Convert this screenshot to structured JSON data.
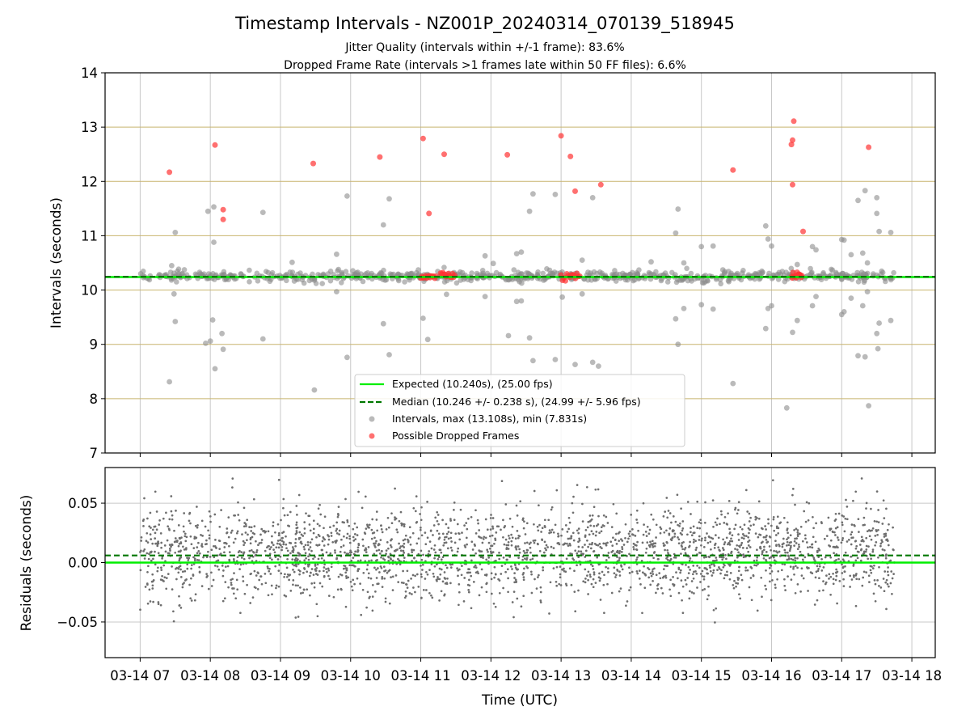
{
  "title": "Timestamp Intervals - NZ001P_20240314_070139_518945",
  "subtitle_lines": [
    "Jitter Quality (intervals within +/-1 frame): 83.6%",
    "Dropped Frame Rate (intervals >1 frames late within 50 FF files): 6.6%"
  ],
  "colors": {
    "expected": "#00ee00",
    "median": "#007700",
    "intervals": "#8c8c8c",
    "dropped": "#ff3333",
    "bandline": "#c8b46e",
    "grid": "#c8c8c8"
  },
  "chart_data": [
    {
      "type": "scatter",
      "ylabel": "Intervals (seconds)",
      "ylim": [
        7,
        14
      ],
      "yticks": [
        "7",
        "8",
        "9",
        "10",
        "11",
        "12",
        "13",
        "14"
      ],
      "xlim": [
        "2024-03-14 06:30",
        "2024-03-14 18:20"
      ],
      "horizontal_reference_lines": [
        8,
        9,
        10,
        11,
        12,
        13
      ],
      "grid": true,
      "legend_placement": "lower center",
      "legend": {
        "expected": "Expected (10.240s), (25.00 fps)",
        "median": "Median (10.246 +/- 0.238 s), (24.99 +/- 5.96 fps)",
        "intervals": "Intervals, max (13.108s), min (7.831s)",
        "dropped": "Possible Dropped Frames"
      },
      "expected_interval": 10.24,
      "median_interval": 10.246,
      "band_clusters": [
        {
          "x_start": "2024-03-14 07:00",
          "x_end": "2024-03-14 17:45",
          "y_center": 10.25,
          "y_spread": 0.1
        }
      ],
      "outliers": [
        {
          "x": "2024-03-14 07:25",
          "y": 8.31
        },
        {
          "x": "2024-03-14 07:27",
          "y": 10.45
        },
        {
          "x": "2024-03-14 07:29",
          "y": 9.93
        },
        {
          "x": "2024-03-14 07:30",
          "y": 9.42
        },
        {
          "x": "2024-03-14 07:30",
          "y": 11.06
        },
        {
          "x": "2024-03-14 07:58",
          "y": 11.45
        },
        {
          "x": "2024-03-14 07:56",
          "y": 9.02
        },
        {
          "x": "2024-03-14 08:00",
          "y": 9.06
        },
        {
          "x": "2024-03-14 08:02",
          "y": 9.45
        },
        {
          "x": "2024-03-14 08:03",
          "y": 11.53
        },
        {
          "x": "2024-03-14 08:03",
          "y": 10.88
        },
        {
          "x": "2024-03-14 08:04",
          "y": 8.55
        },
        {
          "x": "2024-03-14 08:10",
          "y": 9.2
        },
        {
          "x": "2024-03-14 08:11",
          "y": 8.91
        },
        {
          "x": "2024-03-14 08:45",
          "y": 11.43
        },
        {
          "x": "2024-03-14 08:45",
          "y": 9.1
        },
        {
          "x": "2024-03-14 09:10",
          "y": 10.51
        },
        {
          "x": "2024-03-14 09:29",
          "y": 8.16
        },
        {
          "x": "2024-03-14 09:48",
          "y": 10.66
        },
        {
          "x": "2024-03-14 09:48",
          "y": 9.97
        },
        {
          "x": "2024-03-14 09:57",
          "y": 11.73
        },
        {
          "x": "2024-03-14 09:57",
          "y": 8.76
        },
        {
          "x": "2024-03-14 10:28",
          "y": 11.2
        },
        {
          "x": "2024-03-14 10:28",
          "y": 9.38
        },
        {
          "x": "2024-03-14 10:33",
          "y": 11.68
        },
        {
          "x": "2024-03-14 10:33",
          "y": 8.81
        },
        {
          "x": "2024-03-14 11:02",
          "y": 9.48
        },
        {
          "x": "2024-03-14 11:06",
          "y": 9.09
        },
        {
          "x": "2024-03-14 11:22",
          "y": 9.92
        },
        {
          "x": "2024-03-14 11:55",
          "y": 10.63
        },
        {
          "x": "2024-03-14 11:55",
          "y": 9.88
        },
        {
          "x": "2024-03-14 12:02",
          "y": 10.49
        },
        {
          "x": "2024-03-14 12:15",
          "y": 9.16
        },
        {
          "x": "2024-03-14 12:22",
          "y": 10.67
        },
        {
          "x": "2024-03-14 12:22",
          "y": 9.79
        },
        {
          "x": "2024-03-14 12:26",
          "y": 10.7
        },
        {
          "x": "2024-03-14 12:26",
          "y": 9.8
        },
        {
          "x": "2024-03-14 12:33",
          "y": 11.45
        },
        {
          "x": "2024-03-14 12:33",
          "y": 9.12
        },
        {
          "x": "2024-03-14 12:36",
          "y": 11.77
        },
        {
          "x": "2024-03-14 12:36",
          "y": 8.7
        },
        {
          "x": "2024-03-14 12:55",
          "y": 11.76
        },
        {
          "x": "2024-03-14 12:55",
          "y": 8.72
        },
        {
          "x": "2024-03-14 13:01",
          "y": 9.87
        },
        {
          "x": "2024-03-14 13:12",
          "y": 8.63
        },
        {
          "x": "2024-03-14 13:18",
          "y": 10.55
        },
        {
          "x": "2024-03-14 13:18",
          "y": 9.93
        },
        {
          "x": "2024-03-14 13:27",
          "y": 11.7
        },
        {
          "x": "2024-03-14 13:27",
          "y": 8.67
        },
        {
          "x": "2024-03-14 13:32",
          "y": 8.6
        },
        {
          "x": "2024-03-14 14:17",
          "y": 10.52
        },
        {
          "x": "2024-03-14 14:38",
          "y": 11.05
        },
        {
          "x": "2024-03-14 14:38",
          "y": 9.47
        },
        {
          "x": "2024-03-14 14:40",
          "y": 11.49
        },
        {
          "x": "2024-03-14 14:40",
          "y": 9.0
        },
        {
          "x": "2024-03-14 14:45",
          "y": 10.5
        },
        {
          "x": "2024-03-14 14:45",
          "y": 9.66
        },
        {
          "x": "2024-03-14 15:00",
          "y": 10.8
        },
        {
          "x": "2024-03-14 15:00",
          "y": 9.73
        },
        {
          "x": "2024-03-14 15:10",
          "y": 10.81
        },
        {
          "x": "2024-03-14 15:10",
          "y": 9.65
        },
        {
          "x": "2024-03-14 15:27",
          "y": 8.28
        },
        {
          "x": "2024-03-14 15:55",
          "y": 11.18
        },
        {
          "x": "2024-03-14 15:55",
          "y": 9.29
        },
        {
          "x": "2024-03-14 15:57",
          "y": 10.94
        },
        {
          "x": "2024-03-14 15:57",
          "y": 9.66
        },
        {
          "x": "2024-03-14 16:00",
          "y": 10.81
        },
        {
          "x": "2024-03-14 16:00",
          "y": 9.71
        },
        {
          "x": "2024-03-14 16:13",
          "y": 7.83
        },
        {
          "x": "2024-03-14 16:18",
          "y": 9.22
        },
        {
          "x": "2024-03-14 16:22",
          "y": 10.47
        },
        {
          "x": "2024-03-14 16:22",
          "y": 9.44
        },
        {
          "x": "2024-03-14 16:35",
          "y": 10.8
        },
        {
          "x": "2024-03-14 16:35",
          "y": 9.71
        },
        {
          "x": "2024-03-14 16:38",
          "y": 10.74
        },
        {
          "x": "2024-03-14 16:38",
          "y": 9.88
        },
        {
          "x": "2024-03-14 17:00",
          "y": 10.93
        },
        {
          "x": "2024-03-14 17:00",
          "y": 9.55
        },
        {
          "x": "2024-03-14 17:02",
          "y": 10.92
        },
        {
          "x": "2024-03-14 17:02",
          "y": 9.6
        },
        {
          "x": "2024-03-14 17:08",
          "y": 10.65
        },
        {
          "x": "2024-03-14 17:08",
          "y": 9.85
        },
        {
          "x": "2024-03-14 17:14",
          "y": 11.65
        },
        {
          "x": "2024-03-14 17:14",
          "y": 8.79
        },
        {
          "x": "2024-03-14 17:18",
          "y": 10.68
        },
        {
          "x": "2024-03-14 17:18",
          "y": 9.71
        },
        {
          "x": "2024-03-14 17:20",
          "y": 11.83
        },
        {
          "x": "2024-03-14 17:20",
          "y": 8.77
        },
        {
          "x": "2024-03-14 17:22",
          "y": 10.5
        },
        {
          "x": "2024-03-14 17:22",
          "y": 9.97
        },
        {
          "x": "2024-03-14 17:23",
          "y": 7.87
        },
        {
          "x": "2024-03-14 17:30",
          "y": 11.7
        },
        {
          "x": "2024-03-14 17:30",
          "y": 11.41
        },
        {
          "x": "2024-03-14 17:30",
          "y": 9.2
        },
        {
          "x": "2024-03-14 17:31",
          "y": 8.92
        },
        {
          "x": "2024-03-14 17:32",
          "y": 11.08
        },
        {
          "x": "2024-03-14 17:32",
          "y": 9.39
        },
        {
          "x": "2024-03-14 17:42",
          "y": 11.06
        },
        {
          "x": "2024-03-14 17:42",
          "y": 9.44
        }
      ],
      "dropped_frames": [
        {
          "x": "2024-03-14 07:25",
          "y": 12.17
        },
        {
          "x": "2024-03-14 08:04",
          "y": 12.67
        },
        {
          "x": "2024-03-14 08:11",
          "y": 11.48
        },
        {
          "x": "2024-03-14 08:11",
          "y": 11.3
        },
        {
          "x": "2024-03-14 09:28",
          "y": 12.33
        },
        {
          "x": "2024-03-14 10:25",
          "y": 12.45
        },
        {
          "x": "2024-03-14 11:02",
          "y": 12.79
        },
        {
          "x": "2024-03-14 11:07",
          "y": 11.41
        },
        {
          "x": "2024-03-14 11:20",
          "y": 12.5
        },
        {
          "x": "2024-03-14 12:14",
          "y": 12.49
        },
        {
          "x": "2024-03-14 13:00",
          "y": 12.84
        },
        {
          "x": "2024-03-14 13:08",
          "y": 12.46
        },
        {
          "x": "2024-03-14 13:12",
          "y": 11.82
        },
        {
          "x": "2024-03-14 13:34",
          "y": 11.94
        },
        {
          "x": "2024-03-14 15:27",
          "y": 12.21
        },
        {
          "x": "2024-03-14 16:17",
          "y": 12.68
        },
        {
          "x": "2024-03-14 16:18",
          "y": 12.76
        },
        {
          "x": "2024-03-14 16:19",
          "y": 13.11
        },
        {
          "x": "2024-03-14 16:18",
          "y": 11.94
        },
        {
          "x": "2024-03-14 16:27",
          "y": 11.08
        },
        {
          "x": "2024-03-14 17:23",
          "y": 12.63
        }
      ],
      "dropped_clusters": [
        {
          "x_start": "2024-03-14 11:00",
          "x_end": "2024-03-14 11:13",
          "y": 10.26
        },
        {
          "x_start": "2024-03-14 11:17",
          "x_end": "2024-03-14 11:29",
          "y": 10.28
        },
        {
          "x_start": "2024-03-14 13:00",
          "x_end": "2024-03-14 13:16",
          "y": 10.26
        },
        {
          "x_start": "2024-03-14 16:17",
          "x_end": "2024-03-14 16:26",
          "y": 10.27
        }
      ]
    },
    {
      "type": "scatter",
      "xlabel": "Time (UTC)",
      "ylabel": "Residuals (seconds)",
      "ylim": [
        -0.08,
        0.08
      ],
      "yticks": [
        {
          "value": 0.05,
          "label": "0.05"
        },
        {
          "value": 0.0,
          "label": "0.00"
        },
        {
          "value": -0.05,
          "label": "−0.05"
        }
      ],
      "xlim": [
        "2024-03-14 06:30",
        "2024-03-14 18:20"
      ],
      "xticks": [
        "03-14 07",
        "03-14 08",
        "03-14 09",
        "03-14 10",
        "03-14 11",
        "03-14 12",
        "03-14 13",
        "03-14 14",
        "03-14 15",
        "03-14 16",
        "03-14 17",
        "03-14 18"
      ],
      "grid": true,
      "expected_residual": 0.0,
      "median_residual": 0.006,
      "distribution": {
        "x_start": "2024-03-14 07:00",
        "x_end": "2024-03-14 17:45",
        "y_min": -0.045,
        "y_max": 0.055,
        "y_center": 0.008
      }
    }
  ]
}
